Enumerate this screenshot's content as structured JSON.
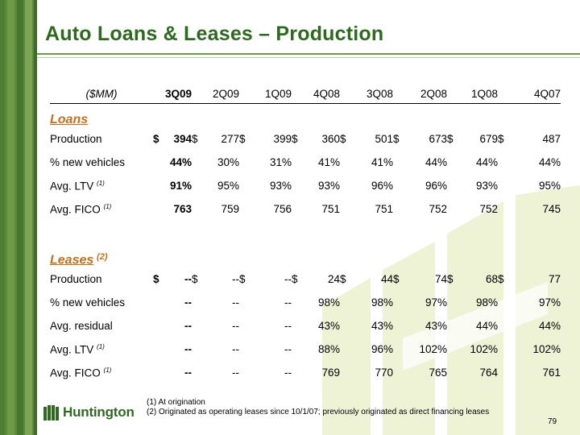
{
  "title": "Auto Loans & Leases – Production",
  "header": {
    "units": "($MM)",
    "periods": [
      "3Q09",
      "2Q09",
      "1Q09",
      "4Q08",
      "3Q08",
      "2Q08",
      "1Q08",
      "4Q07"
    ]
  },
  "loans": {
    "section_label": "Loans",
    "rows": [
      {
        "label": "Production",
        "values": [
          "$ 394",
          "$ 277",
          "$ 399",
          "$ 360",
          "$ 501",
          "$ 673",
          "$ 679",
          "$ 487"
        ]
      },
      {
        "label": "% new vehicles",
        "values": [
          "44%",
          "30%",
          "31%",
          "41%",
          "41%",
          "44%",
          "44%",
          "44%"
        ]
      },
      {
        "label": "Avg. LTV",
        "footnote": "(1)",
        "values": [
          "91%",
          "95%",
          "93%",
          "93%",
          "96%",
          "96%",
          "93%",
          "95%"
        ]
      },
      {
        "label": "Avg. FICO",
        "footnote": "(1)",
        "values": [
          "763",
          "759",
          "756",
          "751",
          "751",
          "752",
          "752",
          "745"
        ]
      }
    ]
  },
  "leases": {
    "section_label": "Leases",
    "section_footnote": "(2)",
    "rows": [
      {
        "label": "Production",
        "values": [
          "$ --",
          "$ --",
          "$ --",
          "$ 24",
          "$ 44",
          "$ 74",
          "$ 68",
          "$ 77"
        ]
      },
      {
        "label": "% new vehicles",
        "values": [
          "--",
          "--",
          "--",
          "98%",
          "98%",
          "97%",
          "98%",
          "97%"
        ]
      },
      {
        "label": "Avg. residual",
        "values": [
          "--",
          "--",
          "--",
          "43%",
          "43%",
          "43%",
          "44%",
          "44%"
        ]
      },
      {
        "label": "Avg. LTV",
        "footnote": "(1)",
        "values": [
          "--",
          "--",
          "--",
          "88%",
          "96%",
          "102%",
          "102%",
          "102%"
        ]
      },
      {
        "label": "Avg. FICO",
        "footnote": "(1)",
        "values": [
          "--",
          "--",
          "--",
          "769",
          "770",
          "765",
          "764",
          "761"
        ]
      }
    ]
  },
  "footnotes": [
    "(1)  At origination",
    "(2)  Originated as operating leases since 10/1/07; previously originated as direct financing leases"
  ],
  "logo_text": "Huntington",
  "page_number": "79",
  "colors": {
    "brand_green": "#2d6a1f",
    "section_orange": "#c5701c",
    "watermark": "#eef3d6"
  }
}
